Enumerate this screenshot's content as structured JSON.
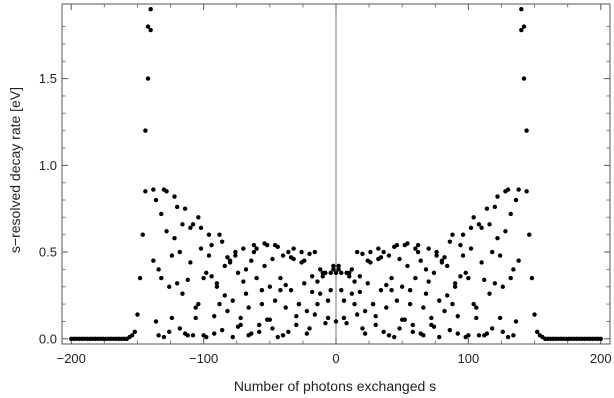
{
  "chart_data": {
    "type": "scatter",
    "title": "",
    "xlabel": "Number of photons exchanged s",
    "ylabel": "s−resolved decay rate [eV]",
    "xlim": [
      -207,
      207
    ],
    "ylim": [
      -0.03,
      1.93
    ],
    "xticks": [
      -200,
      -100,
      0,
      100,
      200
    ],
    "xtick_labels": [
      "−200",
      "−100",
      "0",
      "100",
      "200"
    ],
    "yticks": [
      0.0,
      0.5,
      1.0,
      1.5
    ],
    "ytick_labels": [
      "0.0",
      "0.5",
      "1.0",
      "1.5"
    ],
    "grid": false,
    "legend": "none",
    "vertical_reference_line_x": 0,
    "series": [
      {
        "x": [
          -200,
          -198,
          -196,
          -194,
          -192,
          -190,
          -188,
          -186,
          -184,
          -182,
          -180,
          -178,
          -176,
          -174,
          -172,
          -170,
          -168,
          -166,
          -164,
          -162,
          -160,
          -158,
          -156,
          -154,
          -152,
          -150,
          -148,
          -146,
          -144,
          -142,
          -140,
          -138,
          -136,
          -134,
          -132,
          -130,
          -128,
          -126,
          -124,
          -122,
          -120,
          -118,
          -116,
          -114,
          -112,
          -110,
          -108,
          -106,
          -104,
          -102,
          -100,
          -98,
          -96,
          -94,
          -92,
          -90,
          -88,
          -86,
          -84,
          -82,
          -80,
          -78,
          -76,
          -74,
          -72,
          -70,
          -68,
          -66,
          -64,
          -62,
          -60,
          -58,
          -56,
          -54,
          -52,
          -50,
          -48,
          -46,
          -44,
          -42,
          -40,
          -38,
          -36,
          -34,
          -32,
          -30,
          -28,
          -26,
          -24,
          -22,
          -20,
          -18,
          -16,
          -14,
          -12,
          -10,
          -8,
          -6,
          -4,
          -2,
          0,
          2,
          4,
          6,
          8,
          10,
          12,
          14,
          16,
          18,
          20,
          22,
          24,
          26,
          28,
          30,
          32,
          34,
          36,
          38,
          40,
          42,
          44,
          46,
          48,
          50,
          52,
          54,
          56,
          58,
          60,
          62,
          64,
          66,
          68,
          70,
          72,
          74,
          76,
          78,
          80,
          82,
          84,
          86,
          88,
          90,
          92,
          94,
          96,
          98,
          100,
          102,
          104,
          106,
          108,
          110,
          112,
          114,
          116,
          118,
          120,
          122,
          124,
          126,
          128,
          130,
          132,
          134,
          136,
          138,
          140,
          142,
          144,
          146,
          148,
          150,
          152,
          154,
          156,
          158,
          160,
          162,
          164,
          166,
          168,
          170,
          172,
          174,
          176,
          178,
          180,
          182,
          184,
          186,
          188,
          190,
          192,
          194,
          196,
          198,
          200
        ],
        "y": [
          0.0,
          0.0,
          0.0,
          0.0,
          0.0,
          0.0,
          0.0,
          0.0,
          0.0,
          0.0,
          0.0,
          0.0,
          0.0,
          0.0,
          0.0,
          0.0,
          0.0,
          0.0,
          0.0,
          0.0,
          0.0,
          0.0,
          0.01,
          0.02,
          0.04,
          0.14,
          0.35,
          0.6,
          1.2,
          1.8,
          1.9,
          0.86,
          0.1,
          0.4,
          0.72,
          0.01,
          0.85,
          0.04,
          0.48,
          0.82,
          0.32,
          0.06,
          0.66,
          0.75,
          0.02,
          0.44,
          0.66,
          0.12,
          0.2,
          0.64,
          0.35,
          0.01,
          0.6,
          0.54,
          0.13,
          0.3,
          0.6,
          0.05,
          0.25,
          0.47,
          0.45,
          0.01,
          0.5,
          0.38,
          0.08,
          0.33,
          0.4,
          0.18,
          0.03,
          0.5,
          0.52,
          0.04,
          0.28,
          0.55,
          0.11,
          0.11,
          0.46,
          0.54,
          0.01,
          0.28,
          0.48,
          0.31,
          0.04,
          0.47,
          0.46,
          0.13,
          0.2,
          0.5,
          0.32,
          0.03,
          0.49,
          0.36,
          0.14,
          0.33,
          0.4,
          0.38,
          0.09,
          0.12,
          0.38,
          0.42,
          0.38,
          0.42,
          0.38,
          0.12,
          0.09,
          0.38,
          0.4,
          0.33,
          0.14,
          0.36,
          0.49,
          0.03,
          0.32,
          0.5,
          0.2,
          0.13,
          0.46,
          0.47,
          0.04,
          0.31,
          0.48,
          0.28,
          0.01,
          0.54,
          0.46,
          0.11,
          0.11,
          0.55,
          0.28,
          0.04,
          0.52,
          0.5,
          0.03,
          0.18,
          0.4,
          0.33,
          0.08,
          0.38,
          0.5,
          0.01,
          0.45,
          0.47,
          0.25,
          0.05,
          0.6,
          0.3,
          0.13,
          0.54,
          0.6,
          0.01,
          0.35,
          0.64,
          0.2,
          0.12,
          0.66,
          0.44,
          0.02,
          0.75,
          0.66,
          0.06,
          0.32,
          0.82,
          0.48,
          0.04,
          0.85,
          0.01,
          0.72,
          0.4,
          0.1,
          0.86,
          1.9,
          1.8,
          1.2,
          0.6,
          0.35,
          0.14,
          0.04,
          0.02,
          0.01,
          0.0,
          0.0,
          0.0,
          0.0,
          0.0,
          0.0,
          0.0,
          0.0,
          0.0,
          0.0,
          0.0,
          0.0,
          0.0,
          0.0,
          0.0,
          0.0,
          0.0,
          0.0,
          0.0,
          0.0,
          0.0,
          0.0
        ]
      },
      {
        "x": [
          -144,
          -142,
          -140,
          -138,
          -136,
          -134,
          -132,
          -130,
          -128,
          -126,
          -124,
          -122,
          -120,
          -118,
          -116,
          -114,
          -112,
          -110,
          -108,
          -106,
          -104,
          -102,
          -100,
          -98,
          -96,
          -94,
          -92,
          -90,
          -88,
          -86,
          -84,
          -82,
          -80,
          -78,
          -76,
          -74,
          -72,
          -70,
          -68,
          -66,
          -64,
          -62,
          -60,
          -58,
          -56,
          -54,
          -52,
          -50,
          -48,
          -46,
          -44,
          -42,
          -40,
          -38,
          -36,
          -34,
          -32,
          -30,
          -28,
          -26,
          -24,
          -22,
          -20,
          -18,
          -16,
          -14,
          -12,
          -10,
          -8,
          -6,
          -4,
          -2,
          0,
          2,
          4,
          6,
          8,
          10,
          12,
          14,
          16,
          18,
          20,
          22,
          24,
          26,
          28,
          30,
          32,
          34,
          36,
          38,
          40,
          42,
          44,
          46,
          48,
          50,
          52,
          54,
          56,
          58,
          60,
          62,
          64,
          66,
          68,
          70,
          72,
          74,
          76,
          78,
          80,
          82,
          84,
          86,
          88,
          90,
          92,
          94,
          96,
          98,
          100,
          102,
          104,
          106,
          108,
          110,
          112,
          114,
          116,
          118,
          120,
          122,
          124,
          126,
          128,
          130,
          132,
          134,
          136,
          138,
          140,
          142,
          144
        ],
        "y": [
          0.85,
          1.5,
          1.78,
          0.45,
          0.8,
          0.02,
          0.35,
          0.86,
          0.62,
          0.3,
          0.12,
          0.58,
          0.76,
          0.5,
          0.26,
          0.03,
          0.34,
          0.64,
          0.02,
          0.18,
          0.7,
          0.52,
          0.02,
          0.38,
          0.48,
          0.36,
          0.03,
          0.32,
          0.2,
          0.56,
          0.42,
          0.16,
          0.44,
          0.22,
          0.48,
          0.07,
          0.12,
          0.52,
          0.26,
          0.02,
          0.45,
          0.54,
          0.35,
          0.08,
          0.2,
          0.42,
          0.54,
          0.3,
          0.06,
          0.22,
          0.53,
          0.35,
          0.02,
          0.18,
          0.5,
          0.28,
          0.52,
          0.08,
          0.2,
          0.44,
          0.45,
          0.16,
          0.06,
          0.27,
          0.5,
          0.2,
          0.26,
          0.36,
          0.38,
          0.22,
          0.28,
          0.4,
          0.1,
          0.4,
          0.28,
          0.22,
          0.38,
          0.36,
          0.26,
          0.2,
          0.5,
          0.27,
          0.06,
          0.16,
          0.45,
          0.44,
          0.2,
          0.08,
          0.52,
          0.28,
          0.5,
          0.18,
          0.02,
          0.35,
          0.53,
          0.22,
          0.06,
          0.3,
          0.54,
          0.42,
          0.2,
          0.08,
          0.35,
          0.54,
          0.45,
          0.02,
          0.26,
          0.52,
          0.12,
          0.07,
          0.48,
          0.22,
          0.44,
          0.16,
          0.42,
          0.56,
          0.2,
          0.32,
          0.03,
          0.36,
          0.48,
          0.38,
          0.02,
          0.52,
          0.7,
          0.18,
          0.02,
          0.64,
          0.34,
          0.03,
          0.26,
          0.5,
          0.76,
          0.58,
          0.12,
          0.3,
          0.62,
          0.86,
          0.35,
          0.02,
          0.8,
          0.45,
          1.78,
          1.5,
          0.85
        ]
      }
    ]
  }
}
